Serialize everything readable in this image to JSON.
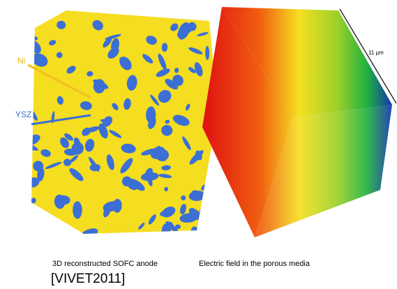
{
  "labels": {
    "ni": "Ni",
    "ysz": "YSZ",
    "scale": "11 µm"
  },
  "captions": {
    "left": "3D reconstructed SOFC anode",
    "right": "Electric field in the porous media"
  },
  "reference": "[VIVET2011]"
}
